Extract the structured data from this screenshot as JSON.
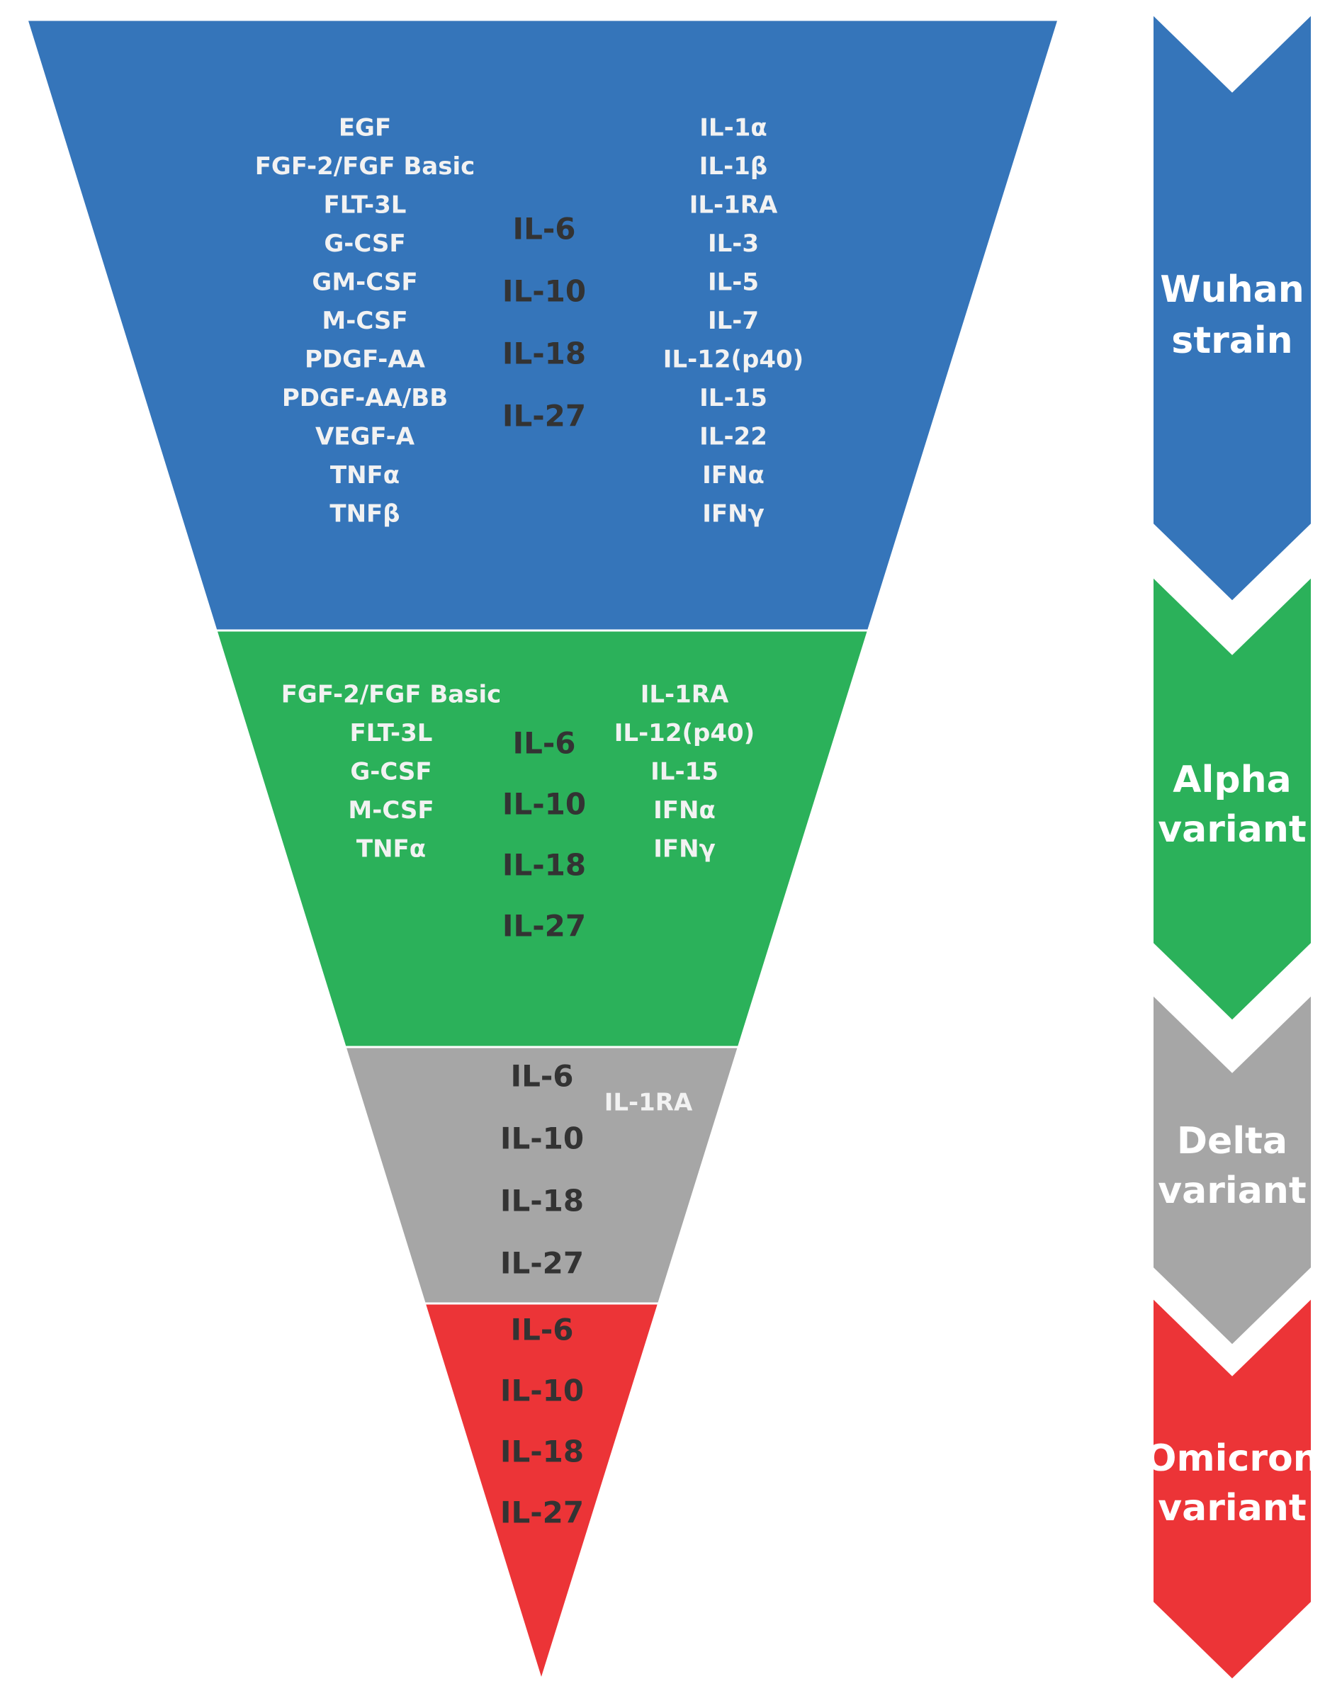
{
  "colors": {
    "wuhan": "#3575BA",
    "alpha": "#2BB15A",
    "delta": "#A6A6A6",
    "omicron": "#EC3437",
    "text_light": "#F2F2F2",
    "text_core": "#333333",
    "page_bg": "#FFFFFF"
  },
  "tiers": [
    {
      "id": "wuhan",
      "left_list": [
        "EGF",
        "FGF-2/FGF Basic",
        "FLT-3L",
        "G-CSF",
        "GM-CSF",
        "M-CSF",
        "PDGF-AA",
        "PDGF-AA/BB",
        "VEGF-A",
        "TNFα",
        "TNFβ"
      ],
      "core_list": [
        "IL-6",
        "IL-10",
        "IL-18",
        "IL-27"
      ],
      "right_list": [
        "IL-1α",
        "IL-1β",
        "IL-1RA",
        "IL-3",
        "IL-5",
        "IL-7",
        "IL-12(p40)",
        "IL-15",
        "IL-22",
        "IFNα",
        "IFNγ"
      ]
    },
    {
      "id": "alpha",
      "left_list": [
        "FGF-2/FGF Basic",
        "FLT-3L",
        "G-CSF",
        "M-CSF",
        "TNFα"
      ],
      "core_list": [
        "IL-6",
        "IL-10",
        "IL-18",
        "IL-27"
      ],
      "right_list": [
        "IL-1RA",
        "IL-12(p40)",
        "IL-15",
        "IFNα",
        "IFNγ"
      ]
    },
    {
      "id": "delta",
      "left_list": [],
      "core_list": [
        "IL-6",
        "IL-10",
        "IL-18",
        "IL-27"
      ],
      "right_list": [
        "IL-1RA"
      ]
    },
    {
      "id": "omicron",
      "left_list": [],
      "core_list": [
        "IL-6",
        "IL-10",
        "IL-18",
        "IL-27"
      ],
      "right_list": []
    }
  ],
  "arrows": [
    {
      "id": "wuhan",
      "label_lines": [
        "Wuhan",
        "strain"
      ],
      "text_color": "#FFFFFF"
    },
    {
      "id": "alpha",
      "label_lines": [
        "Alpha",
        "variant"
      ],
      "text_color": "#FFFFFF"
    },
    {
      "id": "delta",
      "label_lines": [
        "Delta",
        "variant"
      ],
      "text_color": "#FFFFFF"
    },
    {
      "id": "omicron",
      "label_lines": [
        "Omicron",
        "variant"
      ],
      "text_color": "#FFFFFF"
    }
  ]
}
